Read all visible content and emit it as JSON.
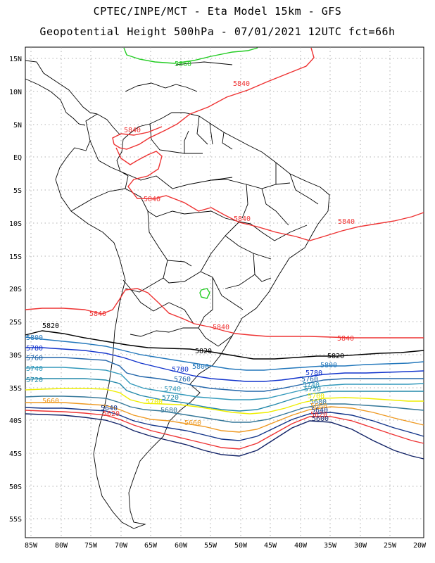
{
  "header": {
    "line1": "CPTEC/INPE/MCT -  Eta Model 15km - GFS",
    "line2": "Geopotential Height 500hPa - 07/01/2021 12UTC fct=66h"
  },
  "axes": {
    "lat_labels": [
      "15N",
      "10N",
      "5N",
      "EQ",
      "5S",
      "10S",
      "15S",
      "20S",
      "25S",
      "30S",
      "35S",
      "40S",
      "45S",
      "50S",
      "55S"
    ],
    "lon_labels": [
      "85W",
      "80W",
      "75W",
      "70W",
      "65W",
      "60W",
      "55W",
      "50W",
      "45W",
      "40W",
      "35W",
      "30W",
      "25W",
      "20W"
    ]
  },
  "contours": {
    "c5860": {
      "label": "5860",
      "color": "#22cc22"
    },
    "c5840": {
      "label": "5840",
      "color": "#ee3333"
    },
    "c5820": {
      "label": "5820",
      "color": "#000000"
    },
    "c5800": {
      "label": "5800",
      "color": "#2277bb"
    },
    "c5780": {
      "label": "5780",
      "color": "#1133cc"
    },
    "c5760": {
      "label": "5760",
      "color": "#2266aa"
    },
    "c5740": {
      "label": "5740",
      "color": "#3399bb"
    },
    "c5720": {
      "label": "5720",
      "color": "#2288aa"
    },
    "c5700": {
      "label": "5700",
      "color": "#eeee00"
    },
    "c5680": {
      "label": "5680",
      "color": "#337799"
    },
    "c5660": {
      "label": "5660",
      "color": "#ee9922"
    },
    "c5640": {
      "label": "5640",
      "color": "#113388"
    },
    "c5620": {
      "label": "5620",
      "color": "#ee3333"
    },
    "c5600": {
      "label": "5600",
      "color": "#112266"
    }
  }
}
